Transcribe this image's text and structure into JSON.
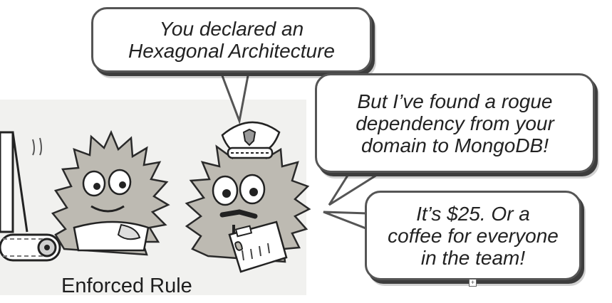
{
  "speech_bubbles": {
    "first": {
      "lines": [
        "You declared an",
        "Hexagonal Architecture"
      ]
    },
    "second": {
      "lines": [
        "But I’ve found a rogue",
        "dependency from your",
        "domain to MongoDB!"
      ]
    },
    "third": {
      "lines": [
        "It’s $25. Or a",
        "coffee for everyone",
        "in the team!"
      ]
    }
  },
  "caption": "Enforced Rule",
  "icons": [
    "police-cap-icon",
    "clipboard-icon",
    "conveyor-belt-icon",
    "badge-icon"
  ]
}
